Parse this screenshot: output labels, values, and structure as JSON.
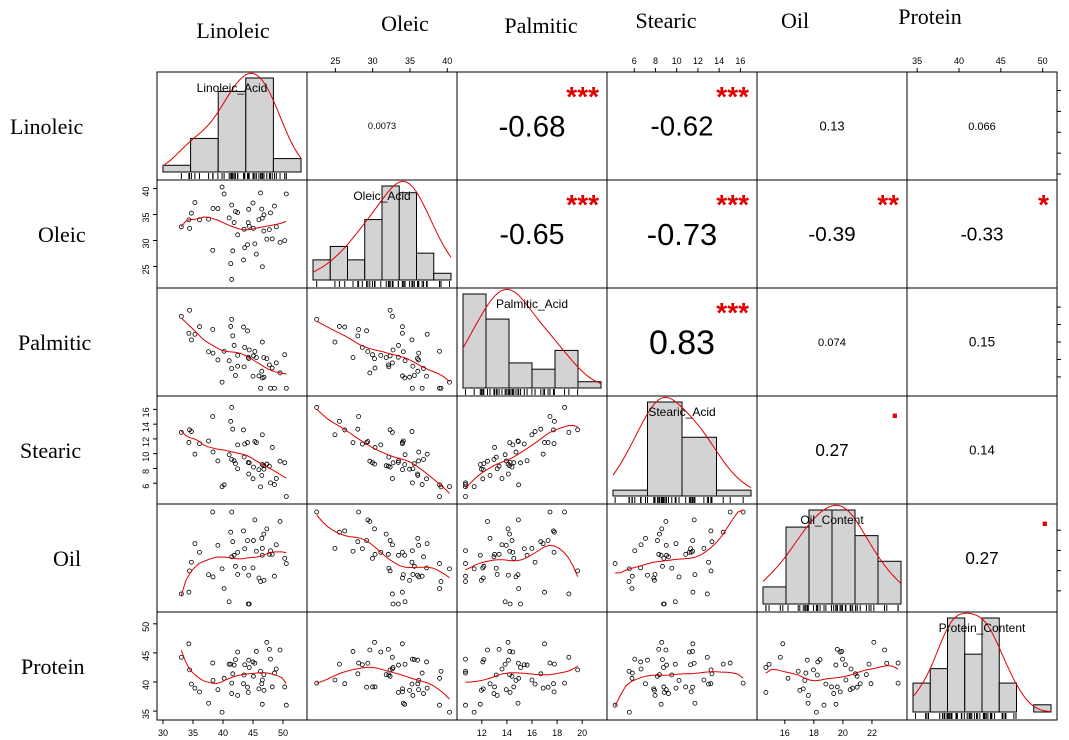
{
  "chart_data": {
    "type": "scatter",
    "variables": [
      "Linoleic",
      "Oleic",
      "Palmitic",
      "Stearic",
      "Oil",
      "Protein"
    ],
    "diagonal_titles": [
      "Linoleic_Acid",
      "Oleic_Acid",
      "Palmitic_Acid",
      "Stearic_Acid",
      "Oil_Content",
      "Protein_Content"
    ],
    "ranges": [
      [
        30,
        53
      ],
      [
        22,
        40.5
      ],
      [
        10.5,
        21.5
      ],
      [
        4,
        17
      ],
      [
        14.5,
        24
      ],
      [
        34.5,
        51
      ]
    ],
    "ticks": [
      [
        30,
        35,
        40,
        45,
        50
      ],
      [
        25,
        30,
        35,
        40
      ],
      [
        12,
        14,
        16,
        18,
        20
      ],
      [
        6,
        8,
        10,
        12,
        14,
        16
      ],
      [
        16,
        18,
        20,
        22
      ],
      [
        35,
        40,
        45,
        50
      ]
    ],
    "histograms": [
      {
        "counts": [
          1,
          5,
          12,
          14,
          2
        ]
      },
      {
        "counts": [
          3,
          5,
          3,
          9,
          14,
          13,
          4,
          1
        ]
      },
      {
        "counts": [
          15,
          11,
          4,
          3,
          6,
          1
        ]
      },
      {
        "counts": [
          1,
          16,
          10,
          1
        ]
      },
      {
        "counts": [
          2,
          9,
          11,
          11,
          8,
          5
        ]
      },
      {
        "counts": [
          4,
          6,
          13,
          8,
          13,
          4,
          0,
          1
        ]
      }
    ],
    "correlations": [
      {
        "row": 0,
        "col": 1,
        "value": "0.0073",
        "stars": ""
      },
      {
        "row": 0,
        "col": 2,
        "value": "-0.68",
        "stars": "***"
      },
      {
        "row": 0,
        "col": 3,
        "value": "-0.62",
        "stars": "***"
      },
      {
        "row": 0,
        "col": 4,
        "value": "0.13",
        "stars": ""
      },
      {
        "row": 0,
        "col": 5,
        "value": "0.066",
        "stars": ""
      },
      {
        "row": 1,
        "col": 2,
        "value": "-0.65",
        "stars": "***"
      },
      {
        "row": 1,
        "col": 3,
        "value": "-0.73",
        "stars": "***"
      },
      {
        "row": 1,
        "col": 4,
        "value": "-0.39",
        "stars": "**"
      },
      {
        "row": 1,
        "col": 5,
        "value": "-0.33",
        "stars": "*"
      },
      {
        "row": 2,
        "col": 3,
        "value": "0.83",
        "stars": "***"
      },
      {
        "row": 2,
        "col": 4,
        "value": "0.074",
        "stars": ""
      },
      {
        "row": 2,
        "col": 5,
        "value": "0.15",
        "stars": ""
      },
      {
        "row": 3,
        "col": 4,
        "value": "0.27",
        "stars": "."
      },
      {
        "row": 3,
        "col": 5,
        "value": "0.14",
        "stars": ""
      },
      {
        "row": 4,
        "col": 5,
        "value": "0.27",
        "stars": "."
      }
    ],
    "colors": {
      "points": "#000000",
      "smooth": "#e00000",
      "bars": "#d3d3d3",
      "stars": "#e00000"
    }
  }
}
